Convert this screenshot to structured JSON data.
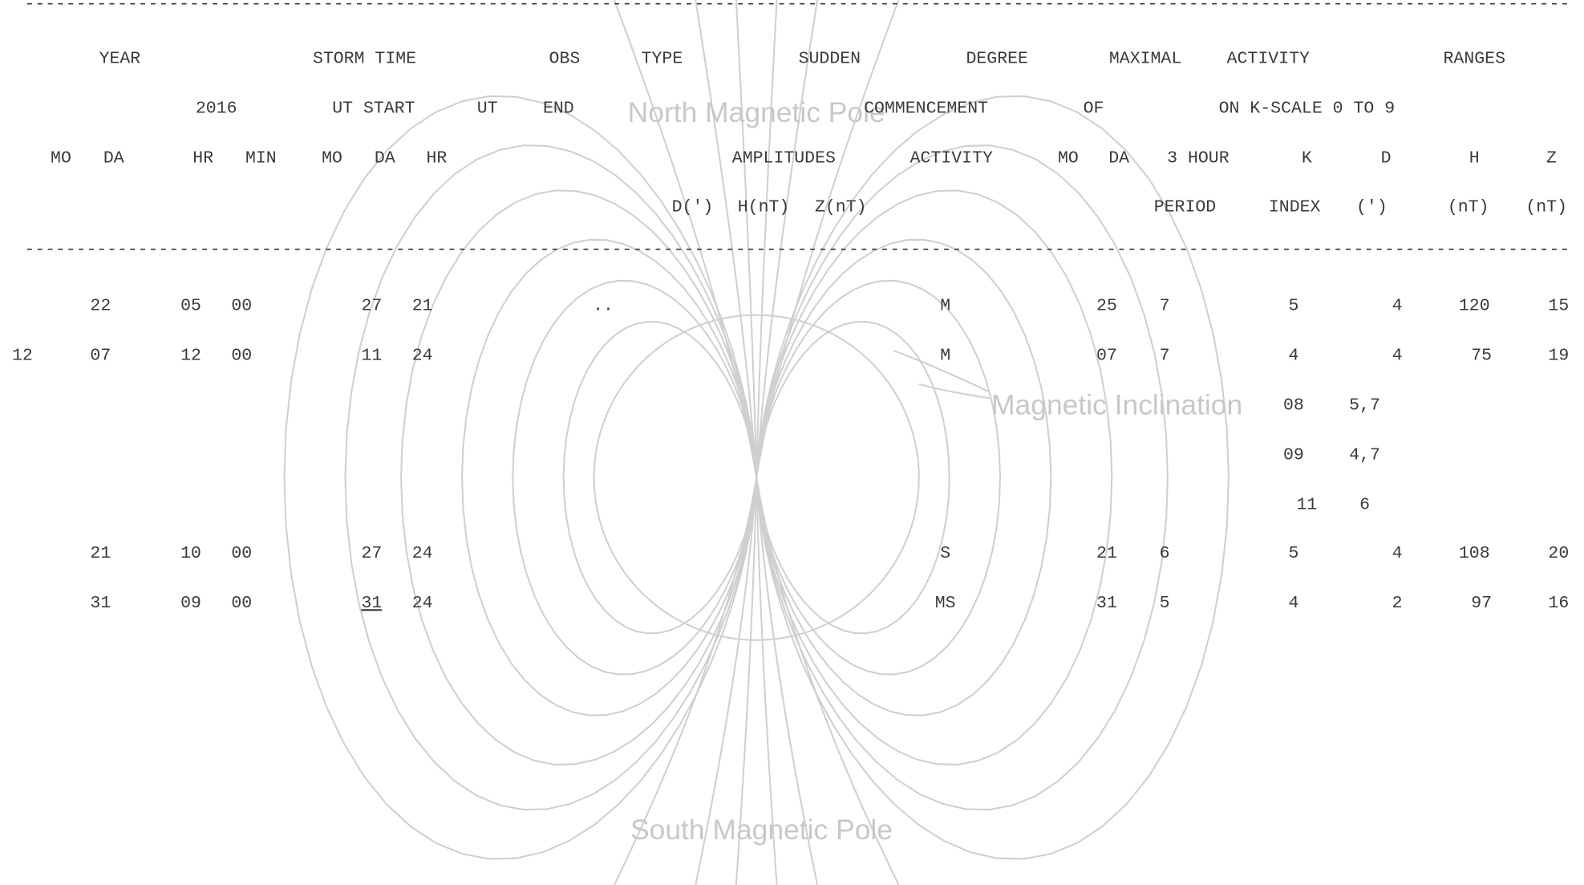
{
  "separator": "------------------------------------------------------------------------------------------------------------------------------------------------------",
  "header": [
    [
      "YEAR",
      "STORM TIME",
      "OBS",
      "TYPE",
      "SUDDEN",
      "DEGREE",
      "MAXIMAL",
      "ACTIVITY",
      "RANGES"
    ],
    [
      "2016",
      "UT START",
      "UT",
      "END",
      "COMMENCEMENT",
      "OF",
      "ON K-SCALE 0 TO 9"
    ],
    [
      "MO",
      "DA",
      "HR",
      "MIN",
      "MO",
      "DA",
      "HR",
      "AMPLITUDES",
      "ACTIVITY",
      "MO",
      "DA",
      "3 HOUR",
      "K",
      "D",
      "H",
      "Z"
    ],
    [
      "D(')",
      "H(nT)",
      "Z(nT)",
      "PERIOD",
      "INDEX",
      "(')",
      "(nT)",
      "(nT)"
    ]
  ],
  "rows": [
    [
      "22",
      "05",
      "00",
      "27",
      "21",
      "..",
      "M",
      "25",
      "7",
      "5",
      "4",
      "120",
      "15"
    ],
    [
      "12",
      "07",
      "12",
      "00",
      "11",
      "24",
      "M",
      "07",
      "7",
      "4",
      "4",
      "75",
      "19"
    ],
    [
      "08",
      "5,7"
    ],
    [
      "09",
      "4,7"
    ],
    [
      "11",
      "6"
    ],
    [
      "21",
      "10",
      "00",
      "27",
      "24",
      "S",
      "21",
      "6",
      "5",
      "4",
      "108",
      "20"
    ],
    [
      "31",
      "09",
      "00",
      "31",
      "24",
      "MS",
      "31",
      "5",
      "4",
      "2",
      "97",
      "16"
    ]
  ],
  "figure_labels": {
    "north": "North Magnetic Pole",
    "inclination": "Magnetic Inclination",
    "south": "South Magnetic Pole"
  }
}
